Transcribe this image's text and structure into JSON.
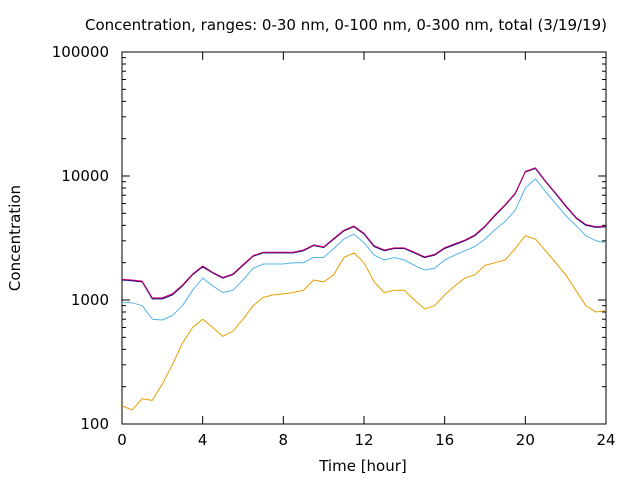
{
  "chart_data": {
    "type": "line",
    "title": "Concentration, ranges: 0-30 nm, 0-100 nm, 0-300 nm, total (3/19/19)",
    "xlabel": "Time [hour]",
    "ylabel": "Concentration",
    "x_scale": "linear",
    "y_scale": "log",
    "xlim": [
      0,
      24
    ],
    "ylim": [
      100,
      100000
    ],
    "x_ticks": [
      0,
      4,
      8,
      12,
      16,
      20,
      24
    ],
    "x_tick_labels": [
      "0",
      "4",
      "8",
      "12",
      "16",
      "20",
      "24"
    ],
    "y_ticks": [
      100,
      1000,
      10000,
      100000
    ],
    "y_tick_labels": [
      "100",
      "1000",
      "10000",
      "100000"
    ],
    "grid": false,
    "legend": "none",
    "x": [
      0,
      0.5,
      1,
      1.5,
      2,
      2.5,
      3,
      3.5,
      4,
      4.5,
      5,
      5.5,
      6,
      6.5,
      7,
      7.5,
      8,
      8.5,
      9,
      9.5,
      10,
      10.5,
      11,
      11.5,
      12,
      12.5,
      13,
      13.5,
      14,
      14.5,
      15,
      15.5,
      16,
      16.5,
      17,
      17.5,
      18,
      18.5,
      19,
      19.5,
      20,
      20.5,
      21,
      21.5,
      22,
      22.5,
      23,
      23.5,
      24
    ],
    "series": [
      {
        "color": "#e69f00",
        "values": [
          140,
          130,
          160,
          155,
          210,
          300,
          450,
          600,
          700,
          600,
          510,
          560,
          700,
          900,
          1050,
          1100,
          1120,
          1150,
          1200,
          1450,
          1400,
          1600,
          2200,
          2400,
          2000,
          1400,
          1150,
          1200,
          1200,
          1000,
          850,
          900,
          1100,
          1300,
          1500,
          1600,
          1900,
          2000,
          2100,
          2600,
          3300,
          3100,
          2500,
          2000,
          1600,
          1200,
          900,
          800,
          820
        ]
      },
      {
        "color": "#56b4e9",
        "values": [
          960,
          950,
          900,
          700,
          690,
          750,
          900,
          1200,
          1500,
          1300,
          1150,
          1200,
          1450,
          1800,
          1950,
          1950,
          1950,
          2000,
          2000,
          2200,
          2200,
          2600,
          3100,
          3400,
          2900,
          2300,
          2100,
          2200,
          2100,
          1900,
          1750,
          1800,
          2100,
          2300,
          2500,
          2700,
          3100,
          3700,
          4300,
          5300,
          8000,
          9500,
          7500,
          6000,
          4800,
          4000,
          3300,
          3000,
          2900
        ]
      },
      {
        "color": "#000080",
        "values": [
          1450,
          1430,
          1400,
          1020,
          1020,
          1100,
          1300,
          1600,
          1850,
          1650,
          1500,
          1600,
          1900,
          2250,
          2400,
          2400,
          2400,
          2400,
          2500,
          2750,
          2650,
          3100,
          3600,
          3900,
          3400,
          2700,
          2500,
          2600,
          2600,
          2400,
          2200,
          2300,
          2600,
          2800,
          3000,
          3300,
          3900,
          4800,
          5800,
          7200,
          10800,
          11500,
          9000,
          7200,
          5700,
          4600,
          4000,
          3850,
          3900
        ]
      },
      {
        "color": "#cc0066",
        "values": [
          1470,
          1450,
          1420,
          1040,
          1040,
          1120,
          1320,
          1620,
          1880,
          1670,
          1520,
          1620,
          1930,
          2280,
          2430,
          2430,
          2430,
          2430,
          2530,
          2780,
          2680,
          3140,
          3650,
          3950,
          3450,
          2740,
          2530,
          2630,
          2630,
          2430,
          2230,
          2330,
          2640,
          2840,
          3040,
          3350,
          3950,
          4870,
          5880,
          7300,
          10900,
          11650,
          9100,
          7300,
          5780,
          4660,
          4060,
          3900,
          3950
        ]
      }
    ]
  }
}
